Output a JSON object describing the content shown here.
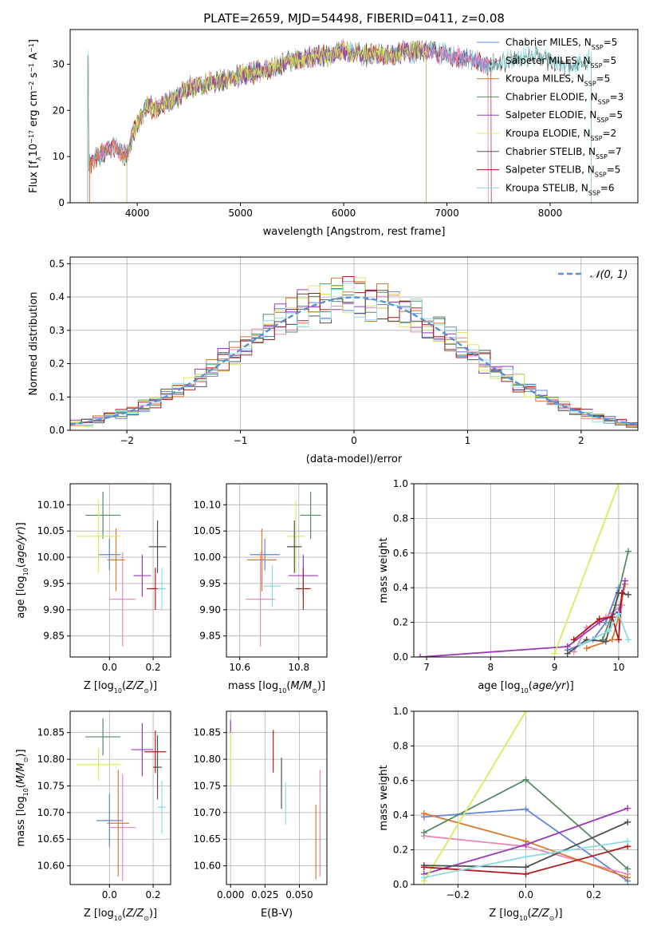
{
  "figure_title": "PLATE=2659, MJD=54498, FIBERID=0411, z=0.08",
  "colors": {
    "Chabrier MILES": "#6186d8",
    "Salpeter MILES": "#e887b9",
    "Kroupa MILES": "#d9782e",
    "Chabrier ELODIE": "#5a8a64",
    "Salpeter ELODIE": "#9b3ab5",
    "Kroupa ELODIE": "#d8ec5c",
    "Chabrier STELIB": "#505050",
    "Salpeter STELIB": "#b11a1a",
    "Kroupa STELIB": "#8adce0",
    "normal": "#5b8fd6",
    "grid": "#b0b0b0"
  },
  "chart_data": [
    {
      "id": "spectrum",
      "type": "line",
      "xlabel": "wavelength [Angstrom, rest frame]",
      "ylabel": "Flux [f_λ 10^-17 erg cm^-2 s^-1 A^-1]",
      "ylabel_parts": {
        "a": "Flux [f",
        "b": "λ",
        "c": "10",
        "d": "−17",
        "e": " erg cm",
        "f": "−2",
        "g": " s",
        "h": "−1",
        "i": " A",
        "j": "−1",
        "k": "]"
      },
      "xlim": [
        3350,
        8850
      ],
      "ylim": [
        0,
        37.5
      ],
      "xticks": [
        4000,
        5000,
        6000,
        7000,
        8000
      ],
      "yticks": [
        0,
        10,
        20,
        30
      ],
      "legend_position": "top-right",
      "legend": [
        {
          "lib": "Chabrier MILES",
          "base": "Chabrier MILES, N",
          "sub": "SSP",
          "suffix": "=5"
        },
        {
          "lib": "Salpeter MILES",
          "base": "Salpeter MILES, N",
          "sub": "SSP",
          "suffix": "=5"
        },
        {
          "lib": "Kroupa MILES",
          "base": "Kroupa MILES, N",
          "sub": "SSP",
          "suffix": "=5"
        },
        {
          "lib": "Chabrier ELODIE",
          "base": "Chabrier ELODIE, N",
          "sub": "SSP",
          "suffix": "=3"
        },
        {
          "lib": "Salpeter ELODIE",
          "base": "Salpeter ELODIE, N",
          "sub": "SSP",
          "suffix": "=5"
        },
        {
          "lib": "Kroupa ELODIE",
          "base": "Kroupa ELODIE, N",
          "sub": "SSP",
          "suffix": "=2"
        },
        {
          "lib": "Chabrier STELIB",
          "base": "Chabrier STELIB, N",
          "sub": "SSP",
          "suffix": "=7"
        },
        {
          "lib": "Salpeter STELIB",
          "base": "Salpeter STELIB, N",
          "sub": "SSP",
          "suffix": "=5"
        },
        {
          "lib": "Kroupa STELIB",
          "base": "Kroupa STELIB, N",
          "sub": "SSP",
          "suffix": "=6"
        }
      ],
      "spectrum_envelope": {
        "x": [
          3530,
          3600,
          3700,
          3800,
          3900,
          3950,
          4000,
          4100,
          4200,
          4300,
          4400,
          4500,
          4700,
          4900,
          5100,
          5300,
          5500,
          5700,
          5900,
          6000,
          6200,
          6400,
          6600,
          6800,
          7000,
          7200,
          7400,
          7600,
          7800,
          8000,
          8200,
          8400
        ],
        "y": [
          8,
          10,
          11,
          12,
          10,
          14,
          17,
          21,
          20,
          22,
          23,
          25,
          26,
          27,
          28,
          29,
          31,
          31.5,
          32,
          33,
          32,
          32,
          32.5,
          33,
          32,
          31,
          30,
          31,
          32,
          31,
          29,
          31
        ]
      },
      "cutoffs": [
        {
          "lib": "Chabrier MILES",
          "x_start": 3540,
          "x_end": 7400
        },
        {
          "lib": "Salpeter MILES",
          "x_start": 3540,
          "x_end": 7400
        },
        {
          "lib": "Kroupa MILES",
          "x_start": 3540,
          "x_end": 6800
        },
        {
          "lib": "Chabrier ELODIE",
          "x_start": 3900,
          "x_end": 6800
        },
        {
          "lib": "Salpeter ELODIE",
          "x_start": 3900,
          "x_end": 6800
        },
        {
          "lib": "Kroupa ELODIE",
          "x_start": 3900,
          "x_end": 6800
        },
        {
          "lib": "Chabrier STELIB",
          "x_start": 3520,
          "x_end": 8400
        },
        {
          "lib": "Salpeter STELIB",
          "x_start": 3520,
          "x_end": 7430
        },
        {
          "lib": "Kroupa STELIB",
          "x_start": 3520,
          "x_end": 8400
        }
      ]
    },
    {
      "id": "residuals",
      "type": "histogram",
      "xlabel": "(data-model)/error",
      "ylabel": "Normed distribution",
      "xlim": [
        -2.5,
        2.5
      ],
      "ylim": [
        0,
        0.52
      ],
      "xticks": [
        -2,
        -1,
        0,
        1,
        2
      ],
      "yticks": [
        0,
        0.1,
        0.2,
        0.3,
        0.4,
        0.5
      ],
      "grid": true,
      "legend_position": "top-right",
      "normal_label": "𝒩(0, 1)",
      "bin_width": 0.1
    },
    {
      "id": "age_vs_Z",
      "type": "errorbar",
      "xlabel": "Z [log10(Z/Z⊙)]",
      "ylabel": "age [log10(age/yr)]",
      "xlim": [
        -0.18,
        0.28
      ],
      "ylim": [
        9.81,
        10.14
      ],
      "xticks": [
        0.0,
        0.2
      ],
      "yticks": [
        9.85,
        9.9,
        9.95,
        10.0,
        10.05,
        10.1
      ],
      "points": [
        {
          "lib": "Chabrier MILES",
          "x": 0.0,
          "xerr": 0.05,
          "y": 10.005,
          "yerr": 0.03
        },
        {
          "lib": "Salpeter MILES",
          "x": 0.06,
          "xerr": 0.06,
          "y": 9.92,
          "yerr": 0.09
        },
        {
          "lib": "Kroupa MILES",
          "x": 0.03,
          "xerr": 0.04,
          "y": 9.995,
          "yerr": 0.06
        },
        {
          "lib": "Chabrier ELODIE",
          "x": -0.03,
          "xerr": 0.08,
          "y": 10.08,
          "yerr": 0.045
        },
        {
          "lib": "Salpeter ELODIE",
          "x": 0.15,
          "xerr": 0.04,
          "y": 9.965,
          "yerr": 0.04
        },
        {
          "lib": "Kroupa ELODIE",
          "x": -0.05,
          "xerr": 0.1,
          "y": 10.04,
          "yerr": 0.07
        },
        {
          "lib": "Chabrier STELIB",
          "x": 0.22,
          "xerr": 0.04,
          "y": 10.02,
          "yerr": 0.05
        },
        {
          "lib": "Salpeter STELIB",
          "x": 0.21,
          "xerr": 0.04,
          "y": 9.94,
          "yerr": 0.04
        },
        {
          "lib": "Kroupa STELIB",
          "x": 0.24,
          "xerr": 0.02,
          "y": 9.94,
          "yerr": 0.04
        }
      ]
    },
    {
      "id": "age_vs_mass",
      "type": "errorbar",
      "xlabel": "mass [log10(M/M⊙)]",
      "ylabel": "",
      "xlim": [
        10.555,
        10.895
      ],
      "ylim": [
        9.81,
        10.14
      ],
      "xticks": [
        10.6,
        10.8
      ],
      "yticks": [
        9.85,
        9.9,
        9.95,
        10.0,
        10.05,
        10.1
      ],
      "points": [
        {
          "lib": "Chabrier MILES",
          "x": 10.685,
          "xerr": 0.05,
          "y": 10.005,
          "yerr": 0.03
        },
        {
          "lib": "Salpeter MILES",
          "x": 10.67,
          "xerr": 0.05,
          "y": 9.92,
          "yerr": 0.09
        },
        {
          "lib": "Kroupa MILES",
          "x": 10.675,
          "xerr": 0.05,
          "y": 9.995,
          "yerr": 0.06
        },
        {
          "lib": "Chabrier ELODIE",
          "x": 10.84,
          "xerr": 0.035,
          "y": 10.08,
          "yerr": 0.045
        },
        {
          "lib": "Salpeter ELODIE",
          "x": 10.815,
          "xerr": 0.05,
          "y": 9.965,
          "yerr": 0.04
        },
        {
          "lib": "Kroupa ELODIE",
          "x": 10.79,
          "xerr": 0.03,
          "y": 10.04,
          "yerr": 0.07
        },
        {
          "lib": "Chabrier STELIB",
          "x": 10.785,
          "xerr": 0.025,
          "y": 10.02,
          "yerr": 0.05
        },
        {
          "lib": "Salpeter STELIB",
          "x": 10.815,
          "xerr": 0.025,
          "y": 9.94,
          "yerr": 0.04
        },
        {
          "lib": "Kroupa STELIB",
          "x": 10.71,
          "xerr": 0.03,
          "y": 9.945,
          "yerr": 0.04
        }
      ]
    },
    {
      "id": "massweight_vs_age",
      "type": "line",
      "xlabel": "age [log10(age/yr)]",
      "ylabel": "mass weight",
      "xlim": [
        6.8,
        10.3
      ],
      "ylim": [
        0,
        1.0
      ],
      "xticks": [
        7,
        8,
        9,
        10
      ],
      "yticks": [
        0.0,
        0.2,
        0.4,
        0.6,
        0.8,
        1.0
      ],
      "grid": true,
      "series": [
        {
          "lib": "Chabrier MILES",
          "x": [
            9.2,
            9.6,
            9.8,
            10.0
          ],
          "y": [
            0.04,
            0.1,
            0.2,
            0.4
          ]
        },
        {
          "lib": "Salpeter MILES",
          "x": [
            9.3,
            9.5,
            9.8,
            10.05
          ],
          "y": [
            0.03,
            0.17,
            0.23,
            0.3
          ]
        },
        {
          "lib": "Kroupa MILES",
          "x": [
            9.5,
            9.9,
            10.0,
            10.1
          ],
          "y": [
            0.05,
            0.1,
            0.23,
            0.42
          ]
        },
        {
          "lib": "Chabrier ELODIE",
          "x": [
            9.75,
            9.95,
            10.15
          ],
          "y": [
            0.1,
            0.3,
            0.61
          ]
        },
        {
          "lib": "Salpeter ELODIE",
          "x": [
            6.9,
            9.2,
            9.7,
            10.0,
            10.1
          ],
          "y": [
            0.0,
            0.06,
            0.2,
            0.26,
            0.44
          ]
        },
        {
          "lib": "Kroupa ELODIE",
          "x": [
            9.0,
            10.0
          ],
          "y": [
            0.02,
            1.0
          ]
        },
        {
          "lib": "Chabrier STELIB",
          "x": [
            9.2,
            9.5,
            9.8,
            10.0,
            10.15
          ],
          "y": [
            0.02,
            0.1,
            0.09,
            0.37,
            0.36
          ]
        },
        {
          "lib": "Salpeter STELIB",
          "x": [
            9.3,
            9.7,
            9.9,
            10.0,
            10.05
          ],
          "y": [
            0.1,
            0.22,
            0.23,
            0.1,
            0.37
          ]
        },
        {
          "lib": "Kroupa STELIB",
          "x": [
            9.4,
            9.85,
            10.0,
            10.15
          ],
          "y": [
            0.07,
            0.15,
            0.25,
            0.1
          ]
        }
      ]
    },
    {
      "id": "mass_vs_Z",
      "type": "errorbar",
      "xlabel": "Z [log10(Z/Z⊙)]",
      "ylabel": "mass [log10(M/M⊙)]",
      "xlim": [
        -0.18,
        0.28
      ],
      "ylim": [
        10.565,
        10.89
      ],
      "xticks": [
        0.0,
        0.2
      ],
      "yticks": [
        10.6,
        10.65,
        10.7,
        10.75,
        10.8,
        10.85
      ],
      "points": [
        {
          "lib": "Chabrier MILES",
          "x": 0.0,
          "xerr": 0.06,
          "y": 10.685,
          "yerr": 0.05
        },
        {
          "lib": "Salpeter MILES",
          "x": 0.06,
          "xerr": 0.06,
          "y": 10.672,
          "yerr": 0.1
        },
        {
          "lib": "Kroupa MILES",
          "x": 0.04,
          "xerr": 0.05,
          "y": 10.68,
          "yerr": 0.1
        },
        {
          "lib": "Chabrier ELODIE",
          "x": -0.03,
          "xerr": 0.08,
          "y": 10.842,
          "yerr": 0.035
        },
        {
          "lib": "Salpeter ELODIE",
          "x": 0.15,
          "xerr": 0.05,
          "y": 10.818,
          "yerr": 0.05
        },
        {
          "lib": "Kroupa ELODIE",
          "x": -0.05,
          "xerr": 0.1,
          "y": 10.79,
          "yerr": 0.03
        },
        {
          "lib": "Chabrier STELIB",
          "x": 0.22,
          "xerr": 0.02,
          "y": 10.785,
          "yerr": 0.06
        },
        {
          "lib": "Salpeter STELIB",
          "x": 0.21,
          "xerr": 0.05,
          "y": 10.814,
          "yerr": 0.04
        },
        {
          "lib": "Kroupa STELIB",
          "x": 0.24,
          "xerr": 0.02,
          "y": 10.71,
          "yerr": 0.05
        }
      ]
    },
    {
      "id": "mass_vs_ebv",
      "type": "errorbar",
      "xlabel": "E(B-V)",
      "ylabel": "",
      "xlim": [
        -0.003,
        0.07
      ],
      "ylim": [
        10.565,
        10.89
      ],
      "xticks": [
        0.0,
        0.025,
        0.05
      ],
      "yticks": [
        10.6,
        10.65,
        10.7,
        10.75,
        10.8,
        10.85
      ],
      "points": [
        {
          "lib": "Salpeter ELODIE",
          "x": 0.0,
          "xerr": 0,
          "y": 10.862,
          "yerr": 0.012
        },
        {
          "lib": "Kroupa ELODIE",
          "x": 0.0,
          "xerr": 0,
          "y": 10.8,
          "yerr": 0.05
        },
        {
          "lib": "Salpeter STELIB",
          "x": 0.031,
          "xerr": 0,
          "y": 10.815,
          "yerr": 0.04
        },
        {
          "lib": "Chabrier STELIB",
          "x": 0.037,
          "xerr": 0,
          "y": 10.755,
          "yerr": 0.048
        },
        {
          "lib": "Kroupa STELIB",
          "x": 0.04,
          "xerr": 0,
          "y": 10.717,
          "yerr": 0.04
        },
        {
          "lib": "Kroupa MILES",
          "x": 0.062,
          "xerr": 0,
          "y": 10.645,
          "yerr": 0.07
        },
        {
          "lib": "Salpeter MILES",
          "x": 0.065,
          "xerr": 0,
          "y": 10.68,
          "yerr": 0.1
        }
      ]
    },
    {
      "id": "massweight_vs_Z",
      "type": "line",
      "xlabel": "Z [log10(Z/Z⊙)]",
      "ylabel": "mass weight",
      "xlim": [
        -0.33,
        0.33
      ],
      "ylim": [
        0,
        1.0
      ],
      "xticks": [
        -0.2,
        0.0,
        0.2
      ],
      "yticks": [
        0.0,
        0.2,
        0.4,
        0.6,
        0.8,
        1.0
      ],
      "grid": true,
      "series": [
        {
          "lib": "Chabrier MILES",
          "x": [
            -0.3,
            0.0,
            0.3
          ],
          "y": [
            0.39,
            0.435,
            0.02
          ]
        },
        {
          "lib": "Salpeter MILES",
          "x": [
            -0.3,
            0.0,
            0.3
          ],
          "y": [
            0.28,
            0.22,
            0.06
          ]
        },
        {
          "lib": "Kroupa MILES",
          "x": [
            -0.3,
            0.0,
            0.3
          ],
          "y": [
            0.41,
            0.25,
            0.04
          ]
        },
        {
          "lib": "Chabrier ELODIE",
          "x": [
            -0.3,
            0.0,
            0.3
          ],
          "y": [
            0.3,
            0.605,
            0.09
          ]
        },
        {
          "lib": "Salpeter ELODIE",
          "x": [
            -0.3,
            0.0,
            0.3
          ],
          "y": [
            0.06,
            0.23,
            0.44
          ]
        },
        {
          "lib": "Kroupa ELODIE",
          "x": [
            -0.3,
            0.0
          ],
          "y": [
            0.02,
            1.0
          ]
        },
        {
          "lib": "Chabrier STELIB",
          "x": [
            -0.3,
            0.0,
            0.3
          ],
          "y": [
            0.11,
            0.1,
            0.36
          ]
        },
        {
          "lib": "Salpeter STELIB",
          "x": [
            -0.3,
            0.0,
            0.3
          ],
          "y": [
            0.1,
            0.06,
            0.22
          ]
        },
        {
          "lib": "Kroupa STELIB",
          "x": [
            -0.3,
            0.0,
            0.3
          ],
          "y": [
            0.04,
            0.16,
            0.25
          ]
        }
      ]
    }
  ]
}
